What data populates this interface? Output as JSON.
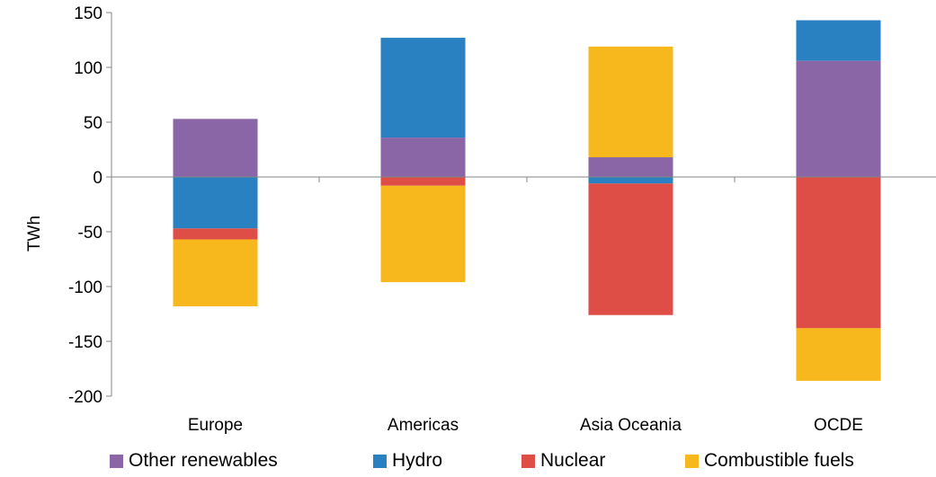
{
  "chart_data": {
    "type": "bar",
    "stacked": true,
    "title": "",
    "xlabel": "",
    "ylabel": "TWh",
    "ylim": [
      -200,
      150
    ],
    "yticks": [
      150,
      100,
      50,
      0,
      -50,
      -100,
      -150,
      -200
    ],
    "grid": false,
    "legend_position": "bottom",
    "categories": [
      "Europe",
      "Americas",
      "Asia Oceania",
      "OCDE"
    ],
    "series": [
      {
        "name": "Other renewables",
        "color": "#8a66a6",
        "values": [
          53,
          36,
          18,
          106
        ]
      },
      {
        "name": "Hydro",
        "color": "#2a81c1",
        "values": [
          -47,
          91,
          -6,
          37
        ]
      },
      {
        "name": "Nuclear",
        "color": "#df4e46",
        "values": [
          -10,
          -8,
          -120,
          -138
        ]
      },
      {
        "name": "Combustible fuels",
        "color": "#f6b81d",
        "values": [
          -61,
          -88,
          101,
          -48
        ]
      }
    ]
  }
}
